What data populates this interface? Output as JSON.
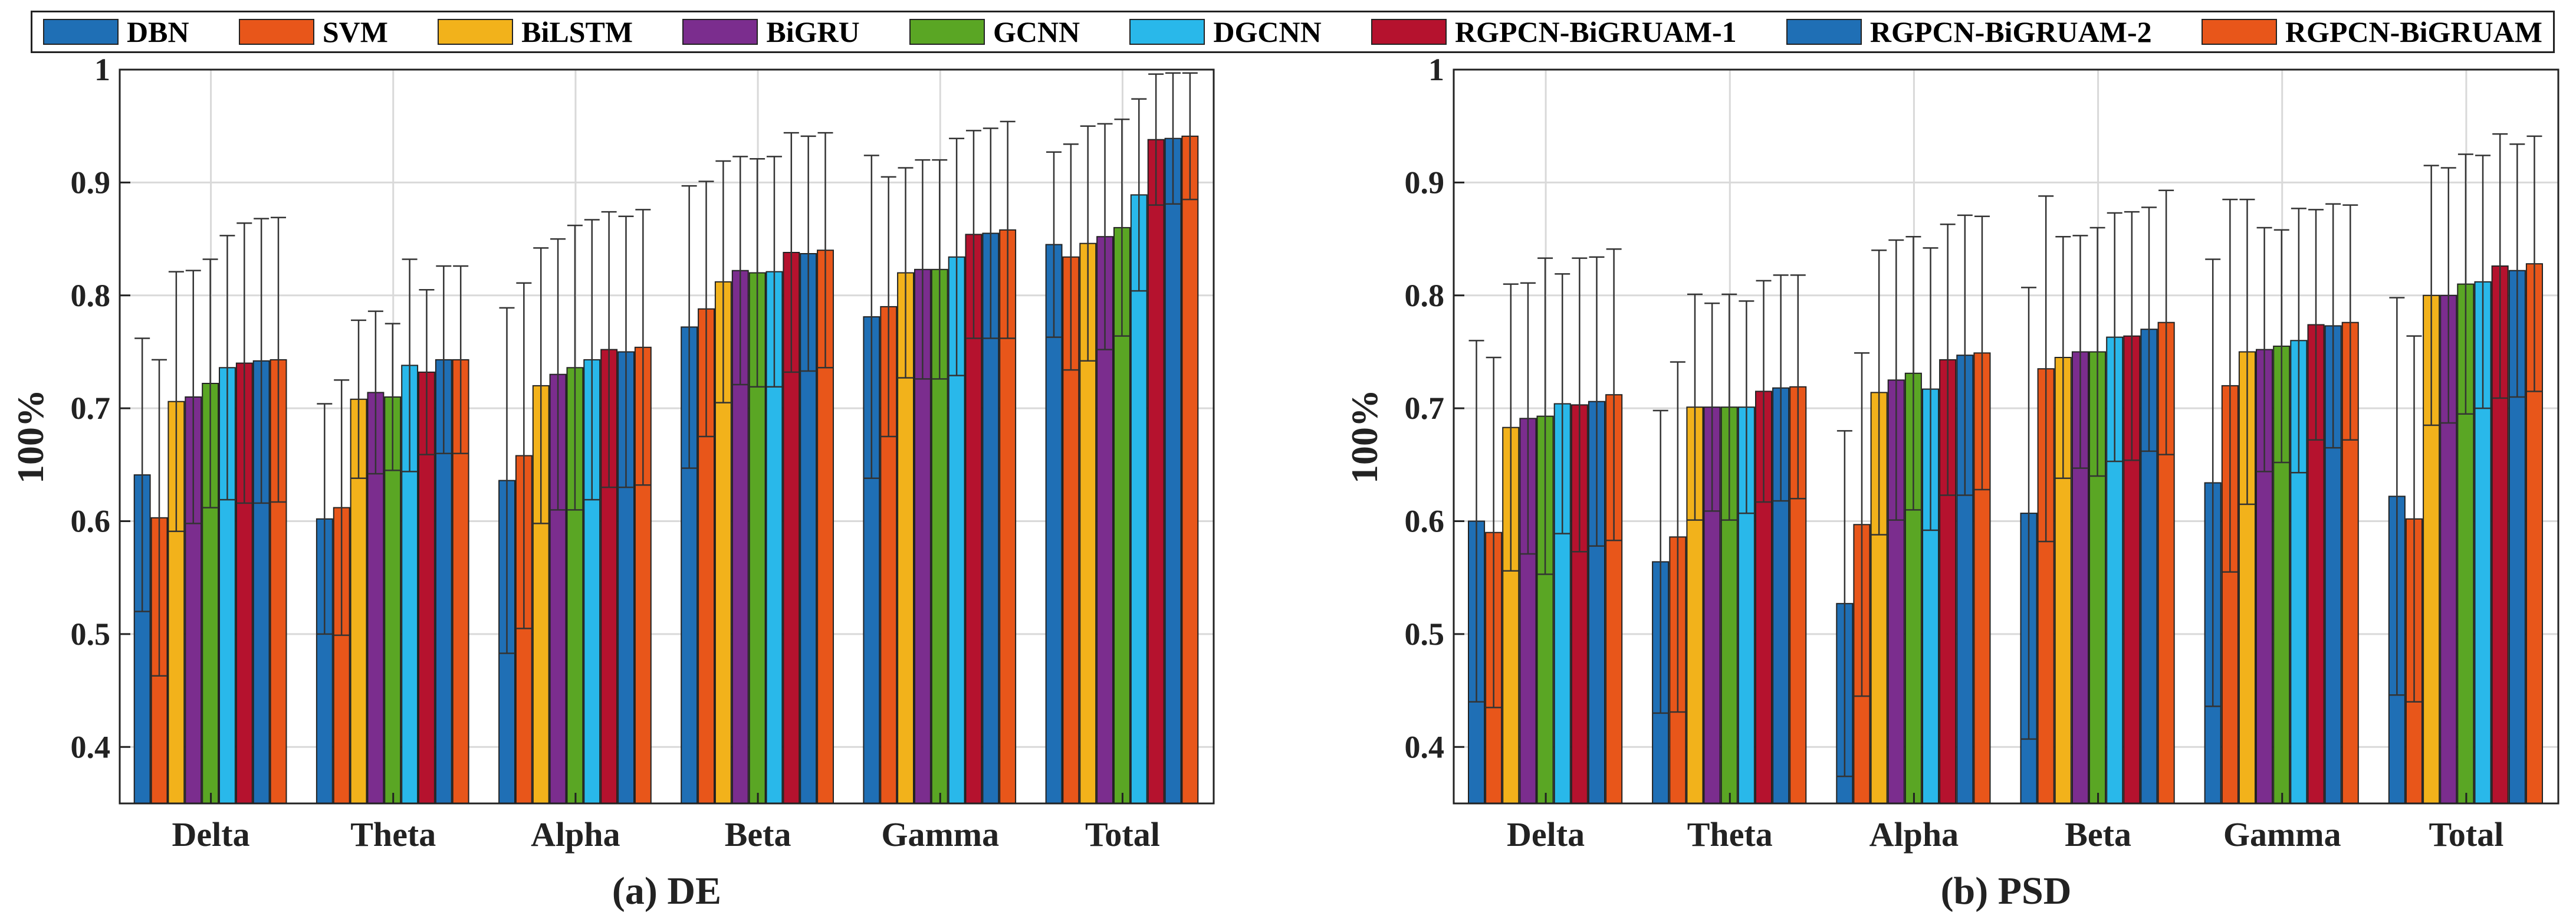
{
  "legend": {
    "entries": [
      {
        "name": "DBN",
        "color": "#1f6fb5"
      },
      {
        "name": "SVM",
        "color": "#e8561a"
      },
      {
        "name": "BiLSTM",
        "color": "#f2b21b"
      },
      {
        "name": "BiGRU",
        "color": "#7b2d8e"
      },
      {
        "name": "GCNN",
        "color": "#5aa624"
      },
      {
        "name": "DGCNN",
        "color": "#29b8ea"
      },
      {
        "name": "RGPCN-BiGRUAM-1",
        "color": "#b5122e"
      },
      {
        "name": "RGPCN-BiGRUAM-2",
        "color": "#1f6fb5"
      },
      {
        "name": "RGPCN-BiGRUAM",
        "color": "#e8561a"
      }
    ]
  },
  "chart_data": [
    {
      "type": "bar",
      "title": "(a) DE",
      "ylabel": "100%",
      "ylim": [
        0.35,
        1.0
      ],
      "yticks": [
        "0.4",
        "0.5",
        "0.6",
        "0.7",
        "0.8",
        "0.9",
        "1"
      ],
      "grid": true,
      "categories": [
        "Delta",
        "Theta",
        "Alpha",
        "Beta",
        "Gamma",
        "Total"
      ],
      "series": [
        {
          "name": "DBN",
          "values": [
            0.641,
            0.602,
            0.636,
            0.772,
            0.781,
            0.845
          ],
          "errors": [
            0.121,
            0.102,
            0.153,
            0.125,
            0.143,
            0.082
          ]
        },
        {
          "name": "SVM",
          "values": [
            0.603,
            0.612,
            0.658,
            0.788,
            0.79,
            0.834
          ],
          "errors": [
            0.14,
            0.113,
            0.153,
            0.113,
            0.115,
            0.1
          ]
        },
        {
          "name": "BiLSTM",
          "values": [
            0.706,
            0.708,
            0.72,
            0.812,
            0.82,
            0.846
          ],
          "errors": [
            0.115,
            0.07,
            0.122,
            0.107,
            0.093,
            0.104
          ]
        },
        {
          "name": "BiGRU",
          "values": [
            0.71,
            0.714,
            0.73,
            0.822,
            0.823,
            0.852
          ],
          "errors": [
            0.112,
            0.072,
            0.12,
            0.101,
            0.097,
            0.1
          ]
        },
        {
          "name": "GCNN",
          "values": [
            0.722,
            0.71,
            0.736,
            0.82,
            0.823,
            0.86
          ],
          "errors": [
            0.11,
            0.065,
            0.126,
            0.101,
            0.097,
            0.096
          ]
        },
        {
          "name": "DGCNN",
          "values": [
            0.736,
            0.738,
            0.743,
            0.821,
            0.834,
            0.889
          ],
          "errors": [
            0.117,
            0.094,
            0.124,
            0.102,
            0.105,
            0.085
          ]
        },
        {
          "name": "RGPCN-BiGRUAM-1",
          "values": [
            0.74,
            0.732,
            0.752,
            0.838,
            0.854,
            0.938
          ],
          "errors": [
            0.124,
            0.073,
            0.122,
            0.106,
            0.092,
            0.058
          ]
        },
        {
          "name": "RGPCN-BiGRUAM-2",
          "values": [
            0.742,
            0.743,
            0.75,
            0.837,
            0.855,
            0.939
          ],
          "errors": [
            0.126,
            0.083,
            0.12,
            0.104,
            0.093,
            0.058
          ]
        },
        {
          "name": "RGPCN-BiGRUAM",
          "values": [
            0.743,
            0.743,
            0.754,
            0.84,
            0.858,
            0.941
          ],
          "errors": [
            0.126,
            0.083,
            0.122,
            0.104,
            0.096,
            0.056
          ]
        }
      ]
    },
    {
      "type": "bar",
      "title": "(b) PSD",
      "ylabel": "100%",
      "ylim": [
        0.35,
        1.0
      ],
      "yticks": [
        "0.4",
        "0.5",
        "0.6",
        "0.7",
        "0.8",
        "0.9",
        "1"
      ],
      "grid": true,
      "categories": [
        "Delta",
        "Theta",
        "Alpha",
        "Beta",
        "Gamma",
        "Total"
      ],
      "series": [
        {
          "name": "DBN",
          "values": [
            0.6,
            0.564,
            0.527,
            0.607,
            0.634,
            0.622
          ],
          "errors": [
            0.16,
            0.134,
            0.153,
            0.2,
            0.198,
            0.176
          ]
        },
        {
          "name": "SVM",
          "values": [
            0.59,
            0.586,
            0.597,
            0.735,
            0.72,
            0.602
          ],
          "errors": [
            0.155,
            0.155,
            0.152,
            0.153,
            0.165,
            0.162
          ]
        },
        {
          "name": "BiLSTM",
          "values": [
            0.683,
            0.701,
            0.714,
            0.745,
            0.75,
            0.8
          ],
          "errors": [
            0.127,
            0.1,
            0.126,
            0.107,
            0.135,
            0.115
          ]
        },
        {
          "name": "BiGRU",
          "values": [
            0.691,
            0.701,
            0.725,
            0.75,
            0.752,
            0.8
          ],
          "errors": [
            0.12,
            0.092,
            0.124,
            0.103,
            0.108,
            0.113
          ]
        },
        {
          "name": "GCNN",
          "values": [
            0.693,
            0.701,
            0.731,
            0.75,
            0.755,
            0.81
          ],
          "errors": [
            0.14,
            0.1,
            0.121,
            0.11,
            0.103,
            0.115
          ]
        },
        {
          "name": "DGCNN",
          "values": [
            0.704,
            0.701,
            0.717,
            0.763,
            0.76,
            0.812
          ],
          "errors": [
            0.115,
            0.094,
            0.125,
            0.11,
            0.117,
            0.112
          ]
        },
        {
          "name": "RGPCN-BiGRUAM-1",
          "values": [
            0.703,
            0.715,
            0.743,
            0.764,
            0.774,
            0.826
          ],
          "errors": [
            0.13,
            0.098,
            0.12,
            0.11,
            0.102,
            0.117
          ]
        },
        {
          "name": "RGPCN-BiGRUAM-2",
          "values": [
            0.706,
            0.718,
            0.747,
            0.77,
            0.773,
            0.822
          ],
          "errors": [
            0.128,
            0.1,
            0.124,
            0.108,
            0.108,
            0.112
          ]
        },
        {
          "name": "RGPCN-BiGRUAM",
          "values": [
            0.712,
            0.719,
            0.749,
            0.776,
            0.776,
            0.828
          ],
          "errors": [
            0.129,
            0.099,
            0.121,
            0.117,
            0.104,
            0.113
          ]
        }
      ]
    }
  ]
}
